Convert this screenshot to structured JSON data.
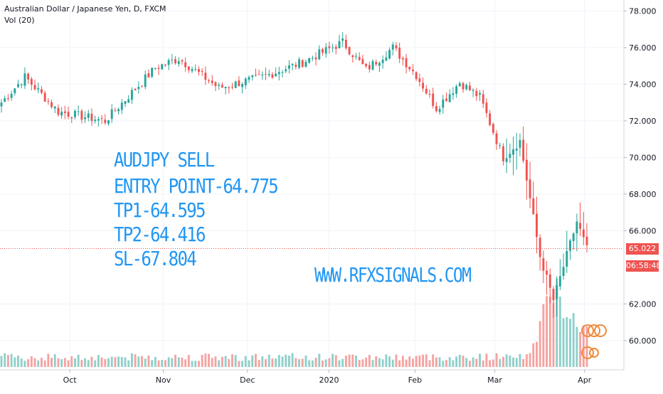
{
  "header": {
    "title": "Australian Dollar / Japanese Yen, D, FXCM",
    "volume_indicator": "Vol (20)"
  },
  "annotation": {
    "lines": [
      "AUDJPY  SELL",
      "ENTRY POINT-64.775",
      "TP1-64.595",
      "TP2-64.416",
      "SL-67.804"
    ],
    "website": "WWW.RFXSIGNALS.COM"
  },
  "price_axis": {
    "current_price": "65.022",
    "countdown": "06:58:48",
    "current_price_value": 65.022
  },
  "colors": {
    "up": "#26a69a",
    "down": "#ef5350",
    "vol_up": "#8fd0ca",
    "vol_down": "#f5a3a1",
    "price_line": "#ef5350",
    "annotation": "#2196f3"
  },
  "chart_data": {
    "type": "candlestick",
    "symbol": "AUDJPY",
    "timeframe": "D",
    "x_ticks": [
      "Oct",
      "Nov",
      "Dec",
      "2020",
      "Feb",
      "Mar",
      "Apr"
    ],
    "y_ticks": [
      "78.000",
      "76.000",
      "74.000",
      "72.000",
      "70.000",
      "68.000",
      "66.000",
      "62.000",
      "60.000"
    ],
    "ylim": [
      58.4,
      78.6
    ],
    "segments": [
      {
        "bars": 8,
        "start": 72.8,
        "end": 74.4
      },
      {
        "bars": 10,
        "start": 74.4,
        "end": 72.5
      },
      {
        "bars": 14,
        "start": 72.5,
        "end": 72.0
      },
      {
        "bars": 15,
        "start": 72.0,
        "end": 74.9
      },
      {
        "bars": 7,
        "start": 74.9,
        "end": 75.4
      },
      {
        "bars": 12,
        "start": 75.4,
        "end": 73.8
      },
      {
        "bars": 13,
        "start": 73.8,
        "end": 74.4
      },
      {
        "bars": 12,
        "start": 74.4,
        "end": 75.2
      },
      {
        "bars": 12,
        "start": 75.2,
        "end": 76.3
      },
      {
        "bars": 7,
        "start": 76.3,
        "end": 74.8
      },
      {
        "bars": 8,
        "start": 74.8,
        "end": 76.0
      },
      {
        "bars": 7,
        "start": 76.0,
        "end": 74.5
      },
      {
        "bars": 6,
        "start": 74.5,
        "end": 72.7
      },
      {
        "bars": 7,
        "start": 72.7,
        "end": 74.1
      },
      {
        "bars": 6,
        "start": 74.1,
        "end": 73.3
      },
      {
        "bars": 7,
        "start": 73.3,
        "end": 70.0
      },
      {
        "bars": 5,
        "start": 70.0,
        "end": 70.9
      },
      {
        "bars": 6,
        "start": 70.9,
        "end": 64.6
      },
      {
        "bars": 4,
        "start": 64.6,
        "end": 62.2
      },
      {
        "bars": 7,
        "start": 62.2,
        "end": 66.5
      },
      {
        "bars": 3,
        "start": 66.5,
        "end": 65.0
      }
    ],
    "volume": {
      "baseline": 1.0,
      "spike_start_bar": 158,
      "spike_peak": 7.0
    }
  }
}
